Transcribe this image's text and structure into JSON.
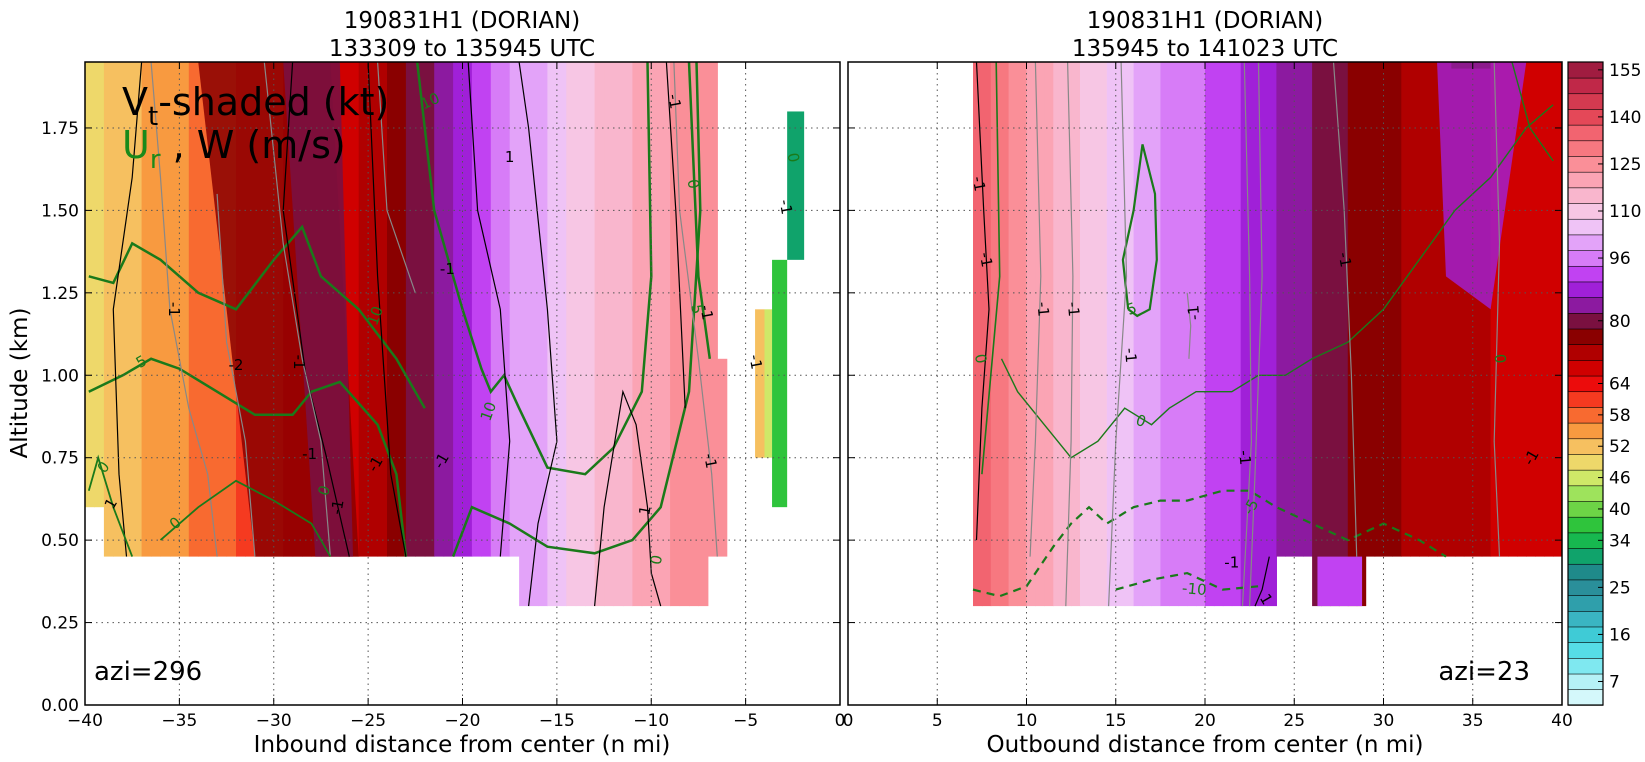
{
  "chart_data": [
    {
      "type": "heatmap",
      "title": [
        "190831H1 (DORIAN)",
        "133309 to 135945 UTC"
      ],
      "xlabel": "Inbound distance from center (n mi)",
      "ylabel": "Altitude (km)",
      "xlim": [
        -40,
        0
      ],
      "ylim": [
        0,
        1.95
      ],
      "xticks": [
        -40,
        -35,
        -30,
        -25,
        -20,
        -15,
        -10,
        -5,
        0
      ],
      "xtick_labels": [
        "−40",
        "−35",
        "−30",
        "−25",
        "−20",
        "−15",
        "−10",
        "−5",
        "0"
      ],
      "yticks": [
        0.0,
        0.25,
        0.5,
        0.75,
        1.0,
        1.25,
        1.5,
        1.75
      ],
      "ytick_labels": [
        "0.00",
        "0.25",
        "0.50",
        "0.75",
        "1.00",
        "1.25",
        "1.50",
        "1.75"
      ],
      "grid": true,
      "legend_text": {
        "vt": "V",
        "vt_sub": "t",
        "vt_rest": "-shaded (kt)",
        "ur": "U",
        "ur_sub": "r",
        "w": " , W (m/s)"
      },
      "annotation": "azi=296",
      "annotation_position": "bottom-left",
      "vt_profile": [
        {
          "x": -40,
          "kt": 50
        },
        {
          "x": -37,
          "kt": 55
        },
        {
          "x": -35,
          "kt": 57
        },
        {
          "x": -33,
          "kt": 60
        },
        {
          "x": -31,
          "kt": 62
        },
        {
          "x": -29,
          "kt": 65
        },
        {
          "x": -27,
          "kt": 68
        },
        {
          "x": -25,
          "kt": 73
        },
        {
          "x": -23,
          "kt": 80
        },
        {
          "x": -21,
          "kt": 86
        },
        {
          "x": -19,
          "kt": 94
        },
        {
          "x": -17,
          "kt": 102
        },
        {
          "x": -15,
          "kt": 108
        },
        {
          "x": -13,
          "kt": 115
        },
        {
          "x": -11,
          "kt": 120
        },
        {
          "x": -9,
          "kt": 125
        },
        {
          "x": -7,
          "kt": 128
        },
        {
          "x": -6,
          "kt": 126
        }
      ],
      "contour_labels": [
        {
          "text": "10",
          "x": -21.7,
          "y": 1.83,
          "color": "#1a7a1a",
          "rot": 25
        },
        {
          "text": "1",
          "x": -17.5,
          "y": 1.66,
          "color": "#000",
          "rot": 0
        },
        {
          "text": "-1",
          "x": -20.8,
          "y": 1.32,
          "color": "#000",
          "rot": 0
        },
        {
          "text": "10",
          "x": -24.6,
          "y": 1.18,
          "color": "#1a7a1a",
          "rot": 70
        },
        {
          "text": "10",
          "x": -18.6,
          "y": 0.89,
          "color": "#1a7a1a",
          "rot": 70
        },
        {
          "text": "-1",
          "x": -35.3,
          "y": 1.2,
          "color": "#000",
          "rot": -90
        },
        {
          "text": "-2",
          "x": -32.0,
          "y": 1.03,
          "color": "#000",
          "rot": 0
        },
        {
          "text": "-1",
          "x": -28.7,
          "y": 1.04,
          "color": "#000",
          "rot": -90
        },
        {
          "text": "-1",
          "x": -28.1,
          "y": 0.76,
          "color": "#000",
          "rot": 0
        },
        {
          "text": "-1",
          "x": -24.6,
          "y": 0.73,
          "color": "#000",
          "rot": 60
        },
        {
          "text": "-1",
          "x": -21.1,
          "y": 0.74,
          "color": "#000",
          "rot": 60
        },
        {
          "text": "-1",
          "x": -26.6,
          "y": 0.6,
          "color": "#000",
          "rot": 80
        },
        {
          "text": "0",
          "x": -27.3,
          "y": 0.65,
          "color": "#1a7a1a",
          "rot": 70
        },
        {
          "text": "0",
          "x": -39.0,
          "y": 0.72,
          "color": "#1a7a1a",
          "rot": 50
        },
        {
          "text": "1",
          "x": -38.6,
          "y": 0.61,
          "color": "#000",
          "rot": 60
        },
        {
          "text": "0",
          "x": -35.2,
          "y": 0.55,
          "color": "#1a7a1a",
          "rot": 40
        },
        {
          "text": "5",
          "x": -37.0,
          "y": 1.04,
          "color": "#1a7a1a",
          "rot": 30
        },
        {
          "text": "1",
          "x": -10.3,
          "y": 0.59,
          "color": "#000",
          "rot": 80
        },
        {
          "text": "0",
          "x": -9.7,
          "y": 0.44,
          "color": "#1a7a1a",
          "rot": 80
        },
        {
          "text": "-1",
          "x": -8.8,
          "y": 1.83,
          "color": "#000",
          "rot": -80
        },
        {
          "text": "0",
          "x": -7.8,
          "y": 1.58,
          "color": "#1a7a1a",
          "rot": -80
        },
        {
          "text": "5",
          "x": -7.6,
          "y": 1.2,
          "color": "#1a7a1a",
          "rot": -80
        },
        {
          "text": "-1",
          "x": -7.1,
          "y": 1.19,
          "color": "#000",
          "rot": -80
        },
        {
          "text": "-1",
          "x": -6.9,
          "y": 0.74,
          "color": "#000",
          "rot": -80
        },
        {
          "text": "-1",
          "x": -2.9,
          "y": 1.51,
          "color": "#000",
          "rot": -80
        },
        {
          "text": "0",
          "x": -2.5,
          "y": 1.66,
          "color": "#1a7a1a",
          "rot": -80
        },
        {
          "text": "-1",
          "x": -4.5,
          "y": 1.04,
          "color": "#000",
          "rot": -80
        }
      ]
    },
    {
      "type": "heatmap",
      "title": [
        "190831H1 (DORIAN)",
        "135945 to 141023 UTC"
      ],
      "xlabel": "Outbound distance from center (n mi)",
      "ylabel": "",
      "xlim": [
        0,
        40
      ],
      "ylim": [
        0,
        1.95
      ],
      "xticks": [
        0,
        5,
        10,
        15,
        20,
        25,
        30,
        35,
        40
      ],
      "xtick_labels": [
        "0",
        "5",
        "10",
        "15",
        "20",
        "25",
        "30",
        "35",
        "40"
      ],
      "yticks": [
        0.0,
        0.25,
        0.5,
        0.75,
        1.0,
        1.25,
        1.5,
        1.75
      ],
      "grid": true,
      "annotation": "azi=23",
      "annotation_position": "bottom-right",
      "vt_profile": [
        {
          "x": 7,
          "kt": 140
        },
        {
          "x": 8.5,
          "kt": 132
        },
        {
          "x": 10,
          "kt": 125
        },
        {
          "x": 12,
          "kt": 118
        },
        {
          "x": 14,
          "kt": 112
        },
        {
          "x": 16,
          "kt": 106
        },
        {
          "x": 18,
          "kt": 100
        },
        {
          "x": 20,
          "kt": 96
        },
        {
          "x": 22,
          "kt": 92
        },
        {
          "x": 24,
          "kt": 88
        },
        {
          "x": 26,
          "kt": 84
        },
        {
          "x": 28,
          "kt": 80
        },
        {
          "x": 30,
          "kt": 77
        },
        {
          "x": 32,
          "kt": 75
        },
        {
          "x": 34,
          "kt": 73
        },
        {
          "x": 36,
          "kt": 72
        },
        {
          "x": 38,
          "kt": 71
        },
        {
          "x": 40,
          "kt": 70
        }
      ],
      "contour_labels": [
        {
          "text": "-1",
          "x": 7.3,
          "y": 1.58,
          "color": "#000",
          "rot": -80
        },
        {
          "text": "-1",
          "x": 7.7,
          "y": 1.35,
          "color": "#000",
          "rot": -80
        },
        {
          "text": "0",
          "x": 7.4,
          "y": 1.05,
          "color": "#1a7a1a",
          "rot": -80
        },
        {
          "text": "-1",
          "x": 10.9,
          "y": 1.2,
          "color": "#000",
          "rot": -85
        },
        {
          "text": "-1",
          "x": 12.6,
          "y": 1.2,
          "color": "#000",
          "rot": -85
        },
        {
          "text": "5",
          "x": 15.9,
          "y": 1.2,
          "color": "#1a7a1a",
          "rot": 20
        },
        {
          "text": "-1",
          "x": 19.4,
          "y": 1.19,
          "color": "#000",
          "rot": 95
        },
        {
          "text": "-1",
          "x": 15.8,
          "y": 1.06,
          "color": "#000",
          "rot": -85
        },
        {
          "text": "0",
          "x": 16.4,
          "y": 0.86,
          "color": "#1a7a1a",
          "rot": -20
        },
        {
          "text": "-1",
          "x": 22.2,
          "y": 0.75,
          "color": "#000",
          "rot": -85
        },
        {
          "text": "-5",
          "x": 22.6,
          "y": 0.6,
          "color": "#1a7a1a",
          "rot": 60
        },
        {
          "text": "-1",
          "x": 21.5,
          "y": 0.43,
          "color": "#000",
          "rot": 0
        },
        {
          "text": "-10",
          "x": 19.4,
          "y": 0.35,
          "color": "#1a7a1a",
          "rot": -5
        },
        {
          "text": "1",
          "x": 23.4,
          "y": 0.32,
          "color": "#000",
          "rot": -60
        },
        {
          "text": "-1",
          "x": 27.8,
          "y": 1.35,
          "color": "#000",
          "rot": -80
        },
        {
          "text": "0",
          "x": 36.5,
          "y": 1.05,
          "color": "#1a7a1a",
          "rot": -85
        },
        {
          "text": "-1",
          "x": 38.3,
          "y": 0.75,
          "color": "#000",
          "rot": 60
        }
      ]
    }
  ],
  "colorbar": {
    "label_values": [
      "155",
      "140",
      "125",
      "110",
      "96",
      "80",
      "64",
      "58",
      "52",
      "46",
      "40",
      "34",
      "25",
      "16",
      "7"
    ],
    "levels": [
      1,
      7,
      10,
      13,
      16,
      19,
      22,
      25,
      28,
      31,
      34,
      37,
      40,
      43,
      46,
      49,
      52,
      55,
      58,
      61,
      64,
      67,
      72,
      76,
      80,
      84,
      88,
      92,
      96,
      101,
      106,
      110,
      115,
      120,
      125,
      130,
      135,
      140,
      145,
      150,
      155,
      160
    ],
    "colors": [
      "#d4f8fb",
      "#b5f1f6",
      "#7fe8f0",
      "#56dde6",
      "#3fcbd6",
      "#3ab5c2",
      "#2f9fab",
      "#2a8f9a",
      "#1f8a8a",
      "#10a36b",
      "#17b84f",
      "#2fc43c",
      "#6dd446",
      "#9ee35c",
      "#cfe868",
      "#eed86a",
      "#f6c060",
      "#f89a40",
      "#f86a30",
      "#f53a20",
      "#ec0c0c",
      "#d00000",
      "#b00000",
      "#8a0000",
      "#7a1040",
      "#8c1aa0",
      "#a020d8",
      "#c142f2",
      "#d77cf7",
      "#e3a3f9",
      "#efc3f6",
      "#f7c6e4",
      "#f9b6cd",
      "#fba4b4",
      "#fa8f98",
      "#f77880",
      "#f26470",
      "#e44858",
      "#d43a50",
      "#c02848",
      "#a01c40"
    ]
  }
}
